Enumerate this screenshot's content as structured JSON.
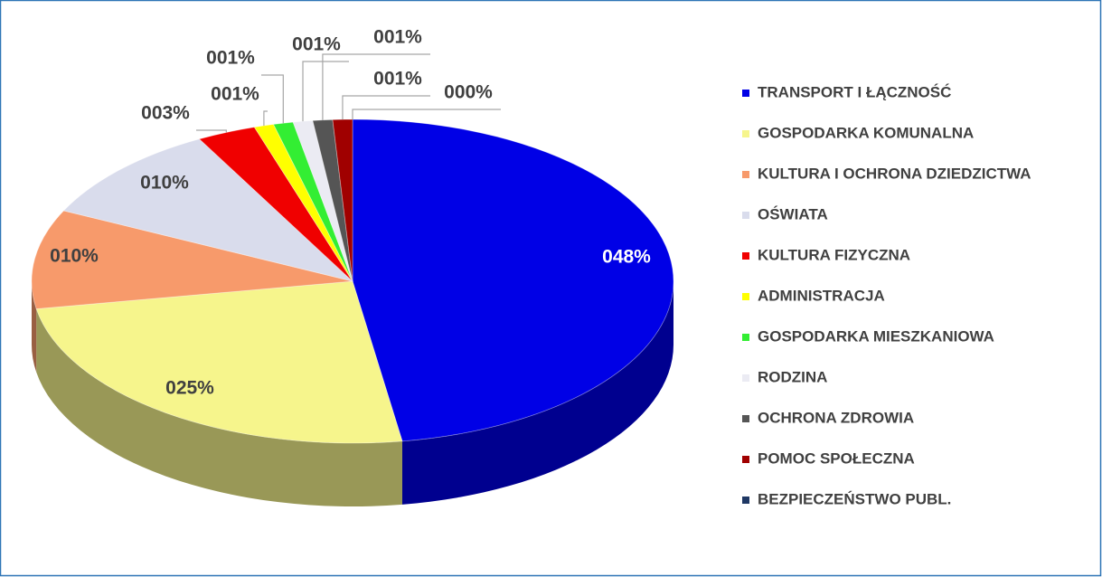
{
  "chart_data": {
    "type": "pie",
    "categories": [
      "TRANSPORT I ŁĄCZNOŚĆ",
      "GOSPODARKA KOMUNALNA",
      "KULTURA I OCHRONA DZIEDZICTWA",
      "OŚWIATA",
      "KULTURA FIZYCZNA",
      "ADMINISTRACJA",
      "GOSPODARKA MIESZKANIOWA",
      "RODZINA",
      "OCHRONA ZDROWIA",
      "POMOC SPOŁECZNA",
      "BEZPIECZEŃSTWO PUBL."
    ],
    "values": [
      48,
      25,
      10,
      10,
      3,
      1,
      1,
      1,
      1,
      1,
      0
    ],
    "value_labels": [
      "048%",
      "025%",
      "010%",
      "010%",
      "003%",
      "001%",
      "001%",
      "001%",
      "001%",
      "001%",
      "000%"
    ],
    "colors": [
      "#0000e6",
      "#f6f58c",
      "#f79a6b",
      "#d9dcec",
      "#f00000",
      "#ffff00",
      "#33ee33",
      "#ebebf3",
      "#555555",
      "#a00000",
      "#1f3864"
    ],
    "legend": "right"
  }
}
